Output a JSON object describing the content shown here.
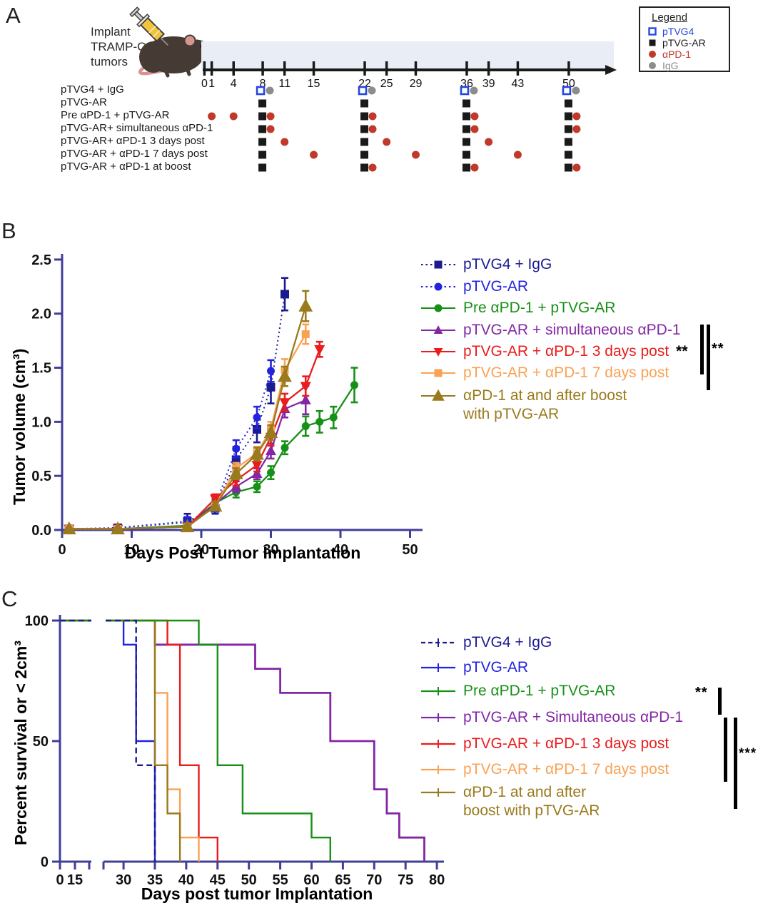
{
  "figure": {
    "panel_a_label": "A",
    "panel_b_label": "B",
    "panel_c_label": "C"
  },
  "panelA": {
    "implant_lines": [
      "Implant",
      "TRAMP-C1",
      "tumors"
    ],
    "timeline_days": [
      0,
      1,
      4,
      8,
      11,
      15,
      22,
      25,
      29,
      36,
      39,
      43,
      50
    ],
    "groups": [
      {
        "label": "pTVG4 + IgG",
        "blue_open_squares": [
          8,
          22,
          36,
          50
        ],
        "gray_circles": [
          8,
          22,
          36,
          50
        ]
      },
      {
        "label": "pTVG-AR",
        "black_squares": [
          8,
          22,
          36,
          50
        ]
      },
      {
        "label": "Pre αPD-1 + pTVG-AR",
        "black_squares": [
          8,
          22,
          36,
          50
        ],
        "red_circles": [
          1,
          4,
          8,
          22,
          36,
          50
        ]
      },
      {
        "label": "pTVG-AR+ simultaneous αPD-1",
        "black_squares": [
          8,
          22,
          36,
          50
        ],
        "red_circles": [
          8,
          22,
          36,
          50
        ]
      },
      {
        "label": "pTVG-AR+ αPD-1 3 days post",
        "black_squares": [
          8,
          22,
          36,
          50
        ],
        "red_circles": [
          11,
          25,
          39
        ]
      },
      {
        "label": "pTVG-AR + αPD-1 7 days post",
        "black_squares": [
          8,
          22,
          36,
          50
        ],
        "red_circles": [
          15,
          29,
          43
        ]
      },
      {
        "label": "pTVG-AR + αPD-1 at boost",
        "black_squares": [
          8
        ],
        "black_squares_paired": [
          22,
          36,
          50
        ],
        "red_circles": [
          22,
          36,
          50
        ]
      }
    ],
    "legend": {
      "title": "Legend",
      "items": [
        {
          "label": "pTVG4",
          "color": "#2547e0",
          "marker": "open-square"
        },
        {
          "label": "pTVG-AR",
          "color": "#1a1a1a",
          "marker": "square"
        },
        {
          "label": "αPD-1",
          "color": "#c0392b",
          "marker": "circle"
        },
        {
          "label": "IgG",
          "color": "#8c8c8c",
          "marker": "circle"
        }
      ]
    }
  },
  "chart_data": [
    {
      "id": "tumor_volume_growth",
      "type": "line",
      "xlabel": "Days Post Tumor Implantation",
      "ylabel": "Tumor volume (cm³)",
      "xlim": [
        0,
        50
      ],
      "ylim": [
        0,
        2.5
      ],
      "xticks": [
        0,
        10,
        20,
        30,
        40,
        50
      ],
      "yticks": [
        "0.0",
        "0.5",
        "1.0",
        "1.5",
        "2.0",
        "2.5"
      ],
      "grid": false,
      "legend_position": "right",
      "series": [
        {
          "name": "pTVG4 + IgG",
          "color": "#1b1b8f",
          "marker": "square",
          "line": "dotted",
          "x": [
            1,
            8,
            18,
            22,
            25,
            28,
            30,
            32
          ],
          "y": [
            0.01,
            0.02,
            0.08,
            0.2,
            0.65,
            0.93,
            1.32,
            2.18
          ],
          "err": [
            0.01,
            0.01,
            0.07,
            0.05,
            0.12,
            0.12,
            0.15,
            0.15
          ]
        },
        {
          "name": "pTVG-AR",
          "color": "#2323dd",
          "marker": "circle",
          "line": "dotted",
          "x": [
            1,
            8,
            18,
            22,
            25,
            28,
            30
          ],
          "y": [
            0.01,
            0.02,
            0.07,
            0.22,
            0.75,
            1.04,
            1.47
          ],
          "err": [
            0.01,
            0.01,
            0.05,
            0.05,
            0.08,
            0.1,
            0.1
          ]
        },
        {
          "name": "Pre αPD-1 + pTVG-AR",
          "color": "#169016",
          "marker": "circle",
          "line": "solid",
          "x": [
            1,
            8,
            18,
            22,
            25,
            28,
            30,
            32,
            35,
            37,
            39,
            42
          ],
          "y": [
            0.01,
            0.01,
            0.04,
            0.25,
            0.35,
            0.4,
            0.53,
            0.76,
            0.96,
            1.0,
            1.04,
            1.34
          ],
          "err": [
            0.01,
            0.01,
            0.02,
            0.04,
            0.05,
            0.05,
            0.06,
            0.06,
            0.09,
            0.1,
            0.1,
            0.16
          ]
        },
        {
          "name": "pTVG-AR + simultaneous αPD-1",
          "color": "#8326a6",
          "marker": "triangle-up",
          "line": "solid",
          "x": [
            1,
            8,
            18,
            22,
            25,
            28,
            30,
            32,
            35
          ],
          "y": [
            0.01,
            0.01,
            0.03,
            0.24,
            0.4,
            0.52,
            0.73,
            1.12,
            1.2
          ],
          "err": [
            0.01,
            0.01,
            0.02,
            0.04,
            0.05,
            0.05,
            0.07,
            0.08,
            0.13
          ]
        },
        {
          "name": "pTVG-AR + αPD-1 3 days post",
          "color": "#ea1c1c",
          "marker": "triangle-down",
          "line": "solid",
          "legend_suffix": "**",
          "x": [
            1,
            8,
            18,
            22,
            25,
            28,
            30,
            32,
            35,
            37
          ],
          "y": [
            0.01,
            0.01,
            0.03,
            0.29,
            0.46,
            0.6,
            0.86,
            1.18,
            1.33,
            1.67
          ],
          "err": [
            0.01,
            0.01,
            0.02,
            0.04,
            0.05,
            0.06,
            0.08,
            0.08,
            0.09,
            0.07
          ]
        },
        {
          "name": "pTVG-AR + αPD-1 7 days post",
          "color": "#f9a254",
          "marker": "square",
          "line": "solid",
          "x": [
            1,
            8,
            18,
            22,
            25,
            28,
            30,
            32,
            35
          ],
          "y": [
            0.01,
            0.01,
            0.03,
            0.22,
            0.57,
            0.71,
            0.93,
            1.48,
            1.81
          ],
          "err": [
            0.01,
            0.01,
            0.02,
            0.04,
            0.05,
            0.06,
            0.07,
            0.1,
            0.09
          ]
        },
        {
          "name": "αPD-1 at and after boost with pTVG-AR",
          "legend_lines": [
            "αPD-1 at and after boost",
            "with pTVG-AR"
          ],
          "color": "#997a1c",
          "marker": "triangle-up",
          "line": "solid",
          "x": [
            1,
            8,
            18,
            22,
            25,
            28,
            30,
            32,
            35
          ],
          "y": [
            0.01,
            0.01,
            0.03,
            0.22,
            0.52,
            0.7,
            0.9,
            1.42,
            2.07
          ],
          "err": [
            0.01,
            0.01,
            0.02,
            0.04,
            0.05,
            0.06,
            0.07,
            0.09,
            0.14
          ]
        }
      ]
    },
    {
      "id": "survival",
      "type": "line",
      "subtype": "kaplan-meier",
      "xlabel": "Days post tumor Implantation",
      "ylabel": "Percent survival or < 2cm³",
      "axis_break_after_day": 20,
      "xticks_pre_break": [
        0,
        15
      ],
      "xticks": [
        30,
        35,
        40,
        45,
        50,
        55,
        60,
        65,
        70,
        75,
        80
      ],
      "yticks": [
        0,
        50,
        100
      ],
      "grid": false,
      "series": [
        {
          "name": "pTVG4 + IgG",
          "color": "#1b1b8f",
          "dash": true,
          "steps": [
            [
              0,
              100
            ],
            [
              32,
              100
            ],
            [
              32,
              40
            ],
            [
              35,
              40
            ],
            [
              35,
              0
            ]
          ]
        },
        {
          "name": "pTVG-AR",
          "color": "#2323dd",
          "dash": false,
          "steps": [
            [
              0,
              100
            ],
            [
              30,
              100
            ],
            [
              30,
              90
            ],
            [
              32,
              90
            ],
            [
              32,
              50
            ],
            [
              35,
              50
            ],
            [
              35,
              0
            ]
          ]
        },
        {
          "name": "Pre αPD-1 + pTVG-AR",
          "color": "#169016",
          "dash": false,
          "steps": [
            [
              0,
              100
            ],
            [
              42,
              100
            ],
            [
              42,
              90
            ],
            [
              45,
              90
            ],
            [
              45,
              40
            ],
            [
              49,
              40
            ],
            [
              49,
              20
            ],
            [
              60,
              20
            ],
            [
              60,
              10
            ],
            [
              63,
              10
            ],
            [
              63,
              0
            ]
          ]
        },
        {
          "name": "pTVG-AR + Simultaneous αPD-1",
          "color": "#8326a6",
          "dash": false,
          "steps": [
            [
              0,
              100
            ],
            [
              35,
              100
            ],
            [
              35,
              90
            ],
            [
              51,
              90
            ],
            [
              51,
              80
            ],
            [
              55,
              80
            ],
            [
              55,
              70
            ],
            [
              63,
              70
            ],
            [
              63,
              50
            ],
            [
              70,
              50
            ],
            [
              70,
              30
            ],
            [
              72,
              30
            ],
            [
              72,
              20
            ],
            [
              74,
              20
            ],
            [
              74,
              10
            ],
            [
              78,
              10
            ],
            [
              78,
              0
            ]
          ]
        },
        {
          "name": "pTVG-AR + αPD-1 3 days post",
          "color": "#ea1c1c",
          "dash": false,
          "steps": [
            [
              0,
              100
            ],
            [
              37,
              100
            ],
            [
              37,
              90
            ],
            [
              39,
              90
            ],
            [
              39,
              40
            ],
            [
              42,
              40
            ],
            [
              42,
              10
            ],
            [
              45,
              10
            ],
            [
              45,
              0
            ]
          ]
        },
        {
          "name": "pTVG-AR + αPD-1 7 days post",
          "color": "#f9a254",
          "dash": false,
          "steps": [
            [
              0,
              100
            ],
            [
              35,
              100
            ],
            [
              35,
              70
            ],
            [
              37,
              70
            ],
            [
              37,
              30
            ],
            [
              39,
              30
            ],
            [
              39,
              10
            ],
            [
              42,
              10
            ],
            [
              42,
              0
            ]
          ]
        },
        {
          "name": "αPD-1 at and after boost with pTVG-AR",
          "legend_lines": [
            "αPD-1 at and after",
            "boost with pTVG-AR"
          ],
          "color": "#997a1c",
          "dash": false,
          "steps": [
            [
              0,
              100
            ],
            [
              35,
              100
            ],
            [
              35,
              40
            ],
            [
              37,
              40
            ],
            [
              37,
              20
            ],
            [
              39,
              20
            ],
            [
              39,
              0
            ]
          ]
        }
      ]
    }
  ],
  "panelB": {
    "sig_bracket": "**"
  },
  "panelC": {
    "sig_top": "**",
    "sig_right": "***"
  }
}
